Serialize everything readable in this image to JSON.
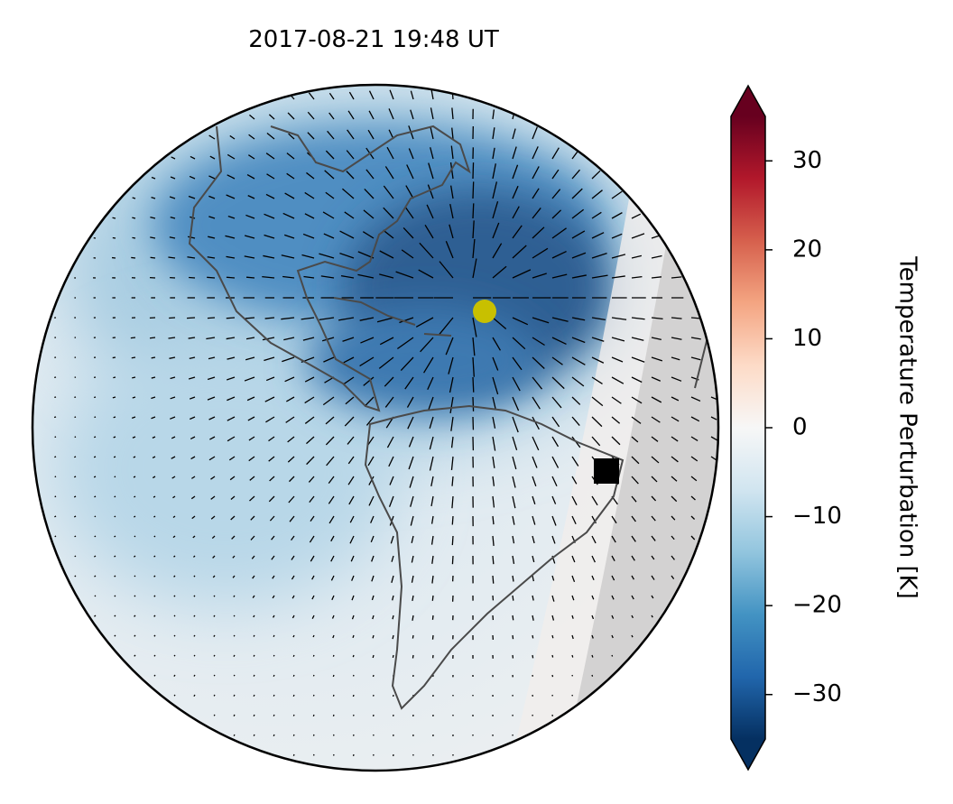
{
  "chart_data": {
    "type": "map",
    "title": "2017-08-21  19:48 UT",
    "colorbar": {
      "label": "Temperature Perturbation [K]",
      "lim": [
        -35,
        35
      ],
      "ticks": [
        {
          "value": -30,
          "label": "−30"
        },
        {
          "value": -20,
          "label": "−20"
        },
        {
          "value": -10,
          "label": "−10"
        },
        0,
        10,
        20,
        30
      ],
      "colors": [
        "#053061",
        "#2166ac",
        "#4393c3",
        "#92c5de",
        "#d1e5f0",
        "#f7f7f7",
        "#fddbc7",
        "#f4a582",
        "#d6604d",
        "#b2182b",
        "#67001f"
      ],
      "extend": "both"
    }
  }
}
